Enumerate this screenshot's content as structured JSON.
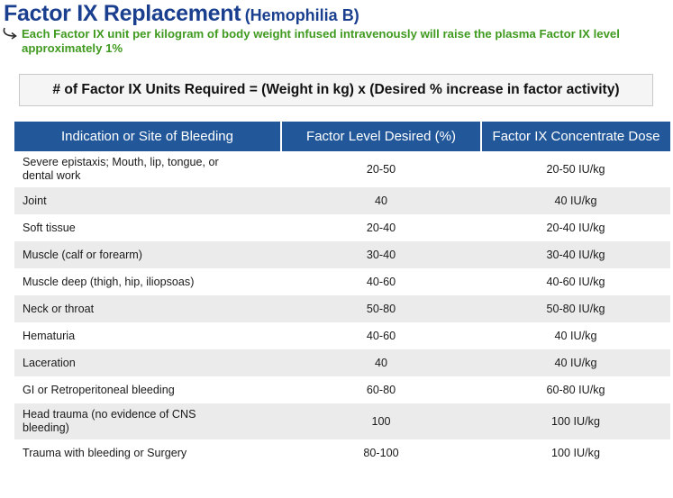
{
  "header": {
    "title": "Factor IX Replacement",
    "subtitle": "(Hemophilia B)"
  },
  "note": {
    "icon": "curved-arrow-icon",
    "text": "Each Factor IX unit per kilogram of body weight infused intravenously will raise the plasma Factor IX level approximately 1%"
  },
  "formula": {
    "text": "# of Factor IX Units Required = (Weight in kg) x (Desired % increase in factor activity)"
  },
  "table": {
    "header_color": "#22589a",
    "columns": [
      "Indication or Site of Bleeding",
      "Factor Level Desired (%)",
      "Factor IX Concentrate Dose"
    ],
    "rows": [
      {
        "site": "Severe epistaxis; Mouth, lip, tongue, or dental work",
        "level": "20-50",
        "dose": "20-50 IU/kg"
      },
      {
        "site": "Joint",
        "level": "40",
        "dose": "40 IU/kg"
      },
      {
        "site": "Soft tissue",
        "level": "20-40",
        "dose": "20-40 IU/kg"
      },
      {
        "site": "Muscle (calf or forearm)",
        "level": "30-40",
        "dose": "30-40 IU/kg"
      },
      {
        "site": "Muscle deep (thigh, hip, iliopsoas)",
        "level": "40-60",
        "dose": "40-60 IU/kg"
      },
      {
        "site": "Neck or throat",
        "level": "50-80",
        "dose": "50-80 IU/kg"
      },
      {
        "site": "Hematuria",
        "level": "40-60",
        "dose": "40 IU/kg"
      },
      {
        "site": "Laceration",
        "level": "40",
        "dose": "40 IU/kg"
      },
      {
        "site": "GI or Retroperitoneal bleeding",
        "level": "60-80",
        "dose": "60-80 IU/kg"
      },
      {
        "site": "Head trauma (no evidence of CNS bleeding)",
        "level": "100",
        "dose": "100 IU/kg"
      },
      {
        "site": "Trauma with bleeding or Surgery",
        "level": "80-100",
        "dose": "100 IU/kg"
      }
    ]
  }
}
